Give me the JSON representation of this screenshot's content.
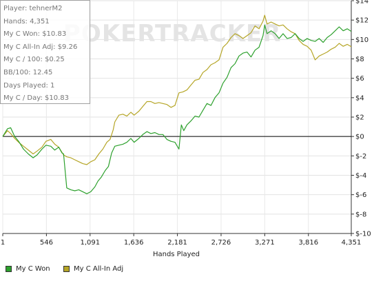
{
  "watermark": "POKERTRACKER",
  "stats": {
    "player": "Player: tehnerM2",
    "hands": "Hands: 4,351",
    "won": "My C Won: $10.83",
    "allin": "My C All-In Adj: $9.26",
    "per100": "My C / 100: $0.25",
    "bb100": "BB/100: 12.45",
    "days": "Days Played: 1",
    "perday": "My C / Day: $10.83"
  },
  "legend": [
    {
      "label": "My C Won",
      "color": "#2ca02c"
    },
    {
      "label": "My C All-In Adj",
      "color": "#b5a526"
    }
  ],
  "chart_data": {
    "type": "line",
    "xlabel": "Hands Played",
    "ylabel": "",
    "xlim": [
      1,
      4351
    ],
    "ylim": [
      -10,
      14
    ],
    "x_ticks": [
      1,
      546,
      1091,
      1636,
      2181,
      2726,
      3271,
      3816,
      4351
    ],
    "x_tick_labels": [
      "1",
      "546",
      "1,091",
      "1,636",
      "2,181",
      "2,726",
      "3,271",
      "3,816",
      "4,351"
    ],
    "y_ticks": [
      14,
      12,
      10,
      8,
      6,
      4,
      2,
      0,
      -2,
      -4,
      -6,
      -8,
      -10
    ],
    "y_tick_labels": [
      "$14",
      "$12",
      "$10",
      "$8",
      "$6",
      "$4",
      "$2",
      "$0",
      "$-2",
      "$-4",
      "$-6",
      "$-8",
      "$-10"
    ],
    "zero_line": true,
    "grid": true,
    "legend_position": "bottom",
    "series": [
      {
        "name": "My C Won",
        "color": "#2ca02c",
        "points": [
          [
            1,
            0
          ],
          [
            60,
            0.8
          ],
          [
            100,
            0.9
          ],
          [
            150,
            0
          ],
          [
            200,
            -0.5
          ],
          [
            260,
            -1.3
          ],
          [
            320,
            -1.8
          ],
          [
            380,
            -2.2
          ],
          [
            430,
            -1.9
          ],
          [
            490,
            -1.3
          ],
          [
            540,
            -0.9
          ],
          [
            600,
            -1
          ],
          [
            650,
            -1.4
          ],
          [
            700,
            -1.1
          ],
          [
            740,
            -1.7
          ],
          [
            760,
            -1.8
          ],
          [
            800,
            -5.3
          ],
          [
            850,
            -5.5
          ],
          [
            900,
            -5.6
          ],
          [
            950,
            -5.5
          ],
          [
            1000,
            -5.7
          ],
          [
            1050,
            -5.9
          ],
          [
            1100,
            -5.7
          ],
          [
            1150,
            -5.2
          ],
          [
            1190,
            -4.6
          ],
          [
            1230,
            -4.2
          ],
          [
            1280,
            -3.5
          ],
          [
            1320,
            -3.1
          ],
          [
            1360,
            -1.7
          ],
          [
            1400,
            -1
          ],
          [
            1450,
            -0.9
          ],
          [
            1500,
            -0.8
          ],
          [
            1550,
            -0.6
          ],
          [
            1600,
            -0.2
          ],
          [
            1640,
            -0.6
          ],
          [
            1700,
            -0.2
          ],
          [
            1750,
            0.2
          ],
          [
            1800,
            0.5
          ],
          [
            1850,
            0.3
          ],
          [
            1900,
            0.4
          ],
          [
            1950,
            0.2
          ],
          [
            2000,
            0.2
          ],
          [
            2050,
            -0.3
          ],
          [
            2100,
            -0.5
          ],
          [
            2150,
            -0.6
          ],
          [
            2200,
            -1.3
          ],
          [
            2230,
            1.2
          ],
          [
            2260,
            0.6
          ],
          [
            2300,
            1.2
          ],
          [
            2350,
            1.6
          ],
          [
            2400,
            2.1
          ],
          [
            2450,
            2
          ],
          [
            2500,
            2.7
          ],
          [
            2550,
            3.4
          ],
          [
            2600,
            3.2
          ],
          [
            2650,
            4
          ],
          [
            2700,
            4.5
          ],
          [
            2750,
            5.5
          ],
          [
            2800,
            6.1
          ],
          [
            2850,
            7.1
          ],
          [
            2900,
            7.5
          ],
          [
            2950,
            8.3
          ],
          [
            3000,
            8.6
          ],
          [
            3050,
            8.7
          ],
          [
            3100,
            8.2
          ],
          [
            3150,
            8.9
          ],
          [
            3200,
            9.2
          ],
          [
            3250,
            10.4
          ],
          [
            3270,
            11.5
          ],
          [
            3300,
            10.6
          ],
          [
            3350,
            10.9
          ],
          [
            3400,
            10.6
          ],
          [
            3450,
            10.1
          ],
          [
            3500,
            10.6
          ],
          [
            3550,
            10.1
          ],
          [
            3600,
            10.2
          ],
          [
            3650,
            10.6
          ],
          [
            3700,
            10.1
          ],
          [
            3750,
            9.8
          ],
          [
            3800,
            10.1
          ],
          [
            3850,
            9.9
          ],
          [
            3900,
            9.8
          ],
          [
            3950,
            10.1
          ],
          [
            4000,
            9.7
          ],
          [
            4050,
            10.2
          ],
          [
            4100,
            10.5
          ],
          [
            4150,
            10.9
          ],
          [
            4200,
            11.3
          ],
          [
            4250,
            10.9
          ],
          [
            4300,
            11.1
          ],
          [
            4351,
            10.83
          ]
        ]
      },
      {
        "name": "My C All-In Adj",
        "color": "#b5a526",
        "points": [
          [
            1,
            0
          ],
          [
            60,
            0.6
          ],
          [
            100,
            0.3
          ],
          [
            150,
            -0.2
          ],
          [
            200,
            -0.6
          ],
          [
            260,
            -1
          ],
          [
            320,
            -1.4
          ],
          [
            380,
            -1.8
          ],
          [
            430,
            -1.5
          ],
          [
            490,
            -1.1
          ],
          [
            540,
            -0.5
          ],
          [
            600,
            -0.3
          ],
          [
            650,
            -0.8
          ],
          [
            700,
            -1.1
          ],
          [
            760,
            -1.9
          ],
          [
            800,
            -2.1
          ],
          [
            850,
            -2.2
          ],
          [
            900,
            -2.4
          ],
          [
            950,
            -2.6
          ],
          [
            1000,
            -2.8
          ],
          [
            1050,
            -2.9
          ],
          [
            1100,
            -2.6
          ],
          [
            1150,
            -2.4
          ],
          [
            1200,
            -1.8
          ],
          [
            1250,
            -1.3
          ],
          [
            1300,
            -0.6
          ],
          [
            1340,
            -0.3
          ],
          [
            1380,
            0.7
          ],
          [
            1400,
            1.5
          ],
          [
            1450,
            2.2
          ],
          [
            1500,
            2.3
          ],
          [
            1550,
            2.1
          ],
          [
            1600,
            2.5
          ],
          [
            1640,
            2.2
          ],
          [
            1700,
            2.6
          ],
          [
            1750,
            3.1
          ],
          [
            1800,
            3.6
          ],
          [
            1850,
            3.6
          ],
          [
            1900,
            3.4
          ],
          [
            1950,
            3.5
          ],
          [
            2000,
            3.4
          ],
          [
            2050,
            3.3
          ],
          [
            2100,
            3
          ],
          [
            2150,
            3.2
          ],
          [
            2200,
            4.5
          ],
          [
            2250,
            4.6
          ],
          [
            2300,
            4.8
          ],
          [
            2350,
            5.3
          ],
          [
            2400,
            5.8
          ],
          [
            2450,
            5.9
          ],
          [
            2500,
            6.6
          ],
          [
            2550,
            6.9
          ],
          [
            2600,
            7.4
          ],
          [
            2650,
            7.6
          ],
          [
            2700,
            7.9
          ],
          [
            2750,
            9.2
          ],
          [
            2800,
            9.6
          ],
          [
            2850,
            10.2
          ],
          [
            2900,
            10.6
          ],
          [
            2950,
            10.4
          ],
          [
            3000,
            10.1
          ],
          [
            3050,
            10.4
          ],
          [
            3100,
            10.7
          ],
          [
            3150,
            11.4
          ],
          [
            3200,
            11.1
          ],
          [
            3250,
            11.9
          ],
          [
            3270,
            12.5
          ],
          [
            3300,
            11.6
          ],
          [
            3350,
            11.8
          ],
          [
            3400,
            11.6
          ],
          [
            3450,
            11.4
          ],
          [
            3500,
            11.5
          ],
          [
            3550,
            11.1
          ],
          [
            3600,
            10.8
          ],
          [
            3650,
            10.6
          ],
          [
            3700,
            9.9
          ],
          [
            3750,
            9.5
          ],
          [
            3800,
            9.3
          ],
          [
            3850,
            8.9
          ],
          [
            3900,
            7.9
          ],
          [
            3950,
            8.3
          ],
          [
            4000,
            8.5
          ],
          [
            4050,
            8.7
          ],
          [
            4100,
            9
          ],
          [
            4150,
            9.2
          ],
          [
            4200,
            9.6
          ],
          [
            4250,
            9.3
          ],
          [
            4300,
            9.5
          ],
          [
            4351,
            9.26
          ]
        ]
      }
    ]
  }
}
